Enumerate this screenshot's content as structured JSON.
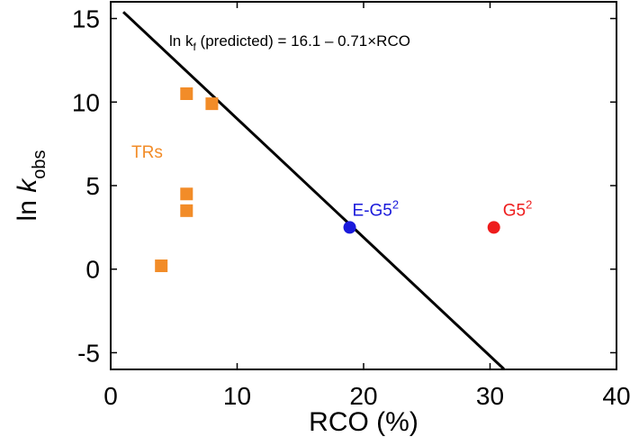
{
  "chart_data": {
    "type": "scatter",
    "xlabel": "RCO (%)",
    "ylabel": {
      "main": "ln ",
      "italic": "k",
      "sub": "obs"
    },
    "xlim": [
      0,
      40
    ],
    "ylim": [
      -6,
      16
    ],
    "xticks": [
      0,
      10,
      20,
      30,
      40
    ],
    "yticks": [
      -5,
      0,
      5,
      10,
      15
    ],
    "grid": false,
    "series": [
      {
        "name": "TRs",
        "color": "#F28C28",
        "marker": "square",
        "points": [
          {
            "x": 4,
            "y": 0.2
          },
          {
            "x": 6,
            "y": 3.5
          },
          {
            "x": 6,
            "y": 4.5
          },
          {
            "x": 6,
            "y": 10.5
          },
          {
            "x": 8,
            "y": 9.9
          }
        ]
      },
      {
        "name": "E-G5",
        "superscript": "2",
        "color": "#1a1adb",
        "marker": "circle",
        "points": [
          {
            "x": 18.9,
            "y": 2.5
          }
        ]
      },
      {
        "name": "G5",
        "superscript": "2",
        "color": "#ee1c1c",
        "marker": "circle",
        "points": [
          {
            "x": 30.3,
            "y": 2.5
          }
        ]
      }
    ],
    "fit_line": {
      "intercept": 16.1,
      "slope": -0.71,
      "x_start": 1,
      "x_end": 31.1,
      "color": "#000000"
    },
    "annotation": {
      "prefix": "ln k",
      "sub": "f",
      "suffix": " (predicted) = 16.1 – 0.71×RCO"
    }
  }
}
